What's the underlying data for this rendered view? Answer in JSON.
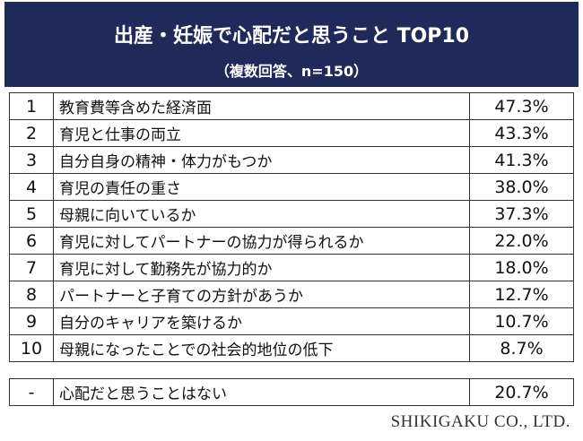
{
  "header": {
    "title": "出産・妊娠で心配だと思うこと TOP10",
    "subtitle": "（複数回答、n=150）"
  },
  "table": {
    "rows": [
      [
        "1",
        "教育費等含めた経済面",
        "47.3%"
      ],
      [
        "2",
        "育児と仕事の両立",
        "43.3%"
      ],
      [
        "3",
        "自分自身の精神・体力がもつか",
        "41.3%"
      ],
      [
        "4",
        "育児の責任の重さ",
        "38.0%"
      ],
      [
        "5",
        "母親に向いているか",
        "37.3%"
      ],
      [
        "6",
        "育児に対してパートナーの協力が得られるか",
        "22.0%"
      ],
      [
        "7",
        "育児に対して勤務先が協力的か",
        "18.0%"
      ],
      [
        "8",
        "パートナーと子育ての方針があうか",
        "12.7%"
      ],
      [
        "9",
        "自分のキャリアを築けるか",
        "10.7%"
      ],
      [
        "10",
        "母親になったことでの社会的地位の低下",
        "8.7%"
      ]
    ],
    "extra_row": [
      "-",
      "心配だと思うことはない",
      "20.7%"
    ]
  },
  "footer": {
    "credit": "SHIKIGAKU CO., LTD."
  }
}
